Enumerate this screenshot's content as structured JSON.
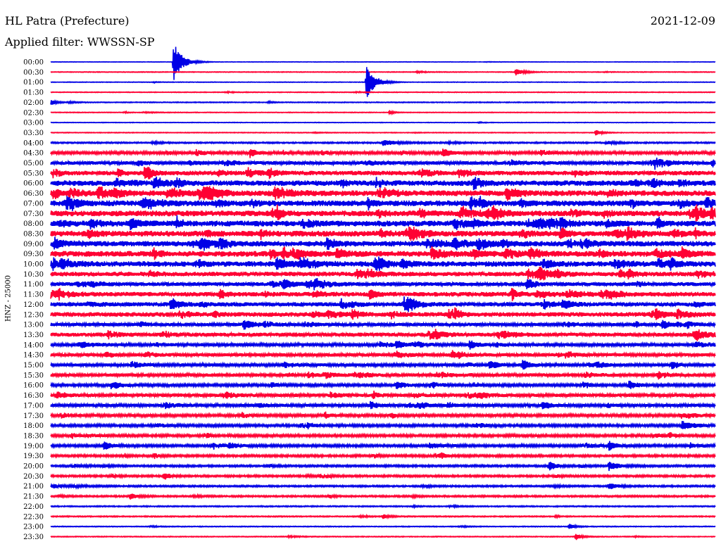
{
  "header": {
    "station": "HL Patra (Prefecture)",
    "date": "2021-12-09",
    "filter": "Applied filter: WWSSN-SP"
  },
  "chart_data": {
    "type": "line",
    "ylabel": "HNZ - 25000",
    "colors": [
      "#0000e6",
      "#ff0033"
    ],
    "grid": false,
    "rows": [
      "00:00",
      "00:30",
      "01:00",
      "01:30",
      "02:00",
      "02:30",
      "03:00",
      "03:30",
      "04:00",
      "04:30",
      "05:00",
      "05:30",
      "06:00",
      "06:30",
      "07:00",
      "07:30",
      "08:00",
      "08:30",
      "09:00",
      "09:30",
      "10:00",
      "10:30",
      "11:00",
      "11:30",
      "12:00",
      "12:30",
      "13:00",
      "13:30",
      "14:00",
      "14:30",
      "15:00",
      "15:30",
      "16:00",
      "16:30",
      "17:00",
      "17:30",
      "18:00",
      "18:30",
      "19:00",
      "19:30",
      "20:00",
      "20:30",
      "21:00",
      "21:30",
      "22:00",
      "22:30",
      "23:00",
      "23:30"
    ],
    "noise": [
      0.3,
      0.5,
      0.4,
      0.5,
      0.6,
      0.5,
      0.4,
      0.5,
      1.0,
      2.0,
      2.5,
      3.2,
      3.8,
      4.0,
      4.0,
      4.0,
      4.0,
      4.0,
      3.8,
      4.0,
      3.8,
      3.2,
      2.8,
      3.2,
      3.0,
      3.2,
      2.4,
      2.8,
      2.2,
      2.4,
      2.2,
      2.4,
      2.0,
      2.4,
      2.2,
      2.0,
      1.8,
      1.8,
      1.8,
      1.6,
      1.4,
      1.4,
      1.2,
      1.2,
      0.8,
      0.8,
      0.6,
      0.6
    ],
    "events": [
      {
        "row": 0,
        "t": 0.185,
        "amp": 28,
        "dur": 0.012
      },
      {
        "row": 1,
        "t": 0.7,
        "amp": 6,
        "dur": 0.01
      },
      {
        "row": 2,
        "t": 0.475,
        "amp": 24,
        "dur": 0.012
      },
      {
        "row": 4,
        "t": 0.0,
        "amp": 4,
        "dur": 0.008
      },
      {
        "row": 5,
        "t": 0.51,
        "amp": 3,
        "dur": 0.006
      },
      {
        "row": 7,
        "t": 0.82,
        "amp": 4,
        "dur": 0.008
      },
      {
        "row": 8,
        "t": 0.5,
        "amp": 4,
        "dur": 0.02
      },
      {
        "row": 9,
        "t": 0.3,
        "amp": 6,
        "dur": 0.008
      },
      {
        "row": 9,
        "t": 0.59,
        "amp": 5,
        "dur": 0.012
      },
      {
        "row": 13,
        "t": 0.23,
        "amp": 6,
        "dur": 0.01
      },
      {
        "row": 16,
        "t": 0.12,
        "amp": 7,
        "dur": 0.012
      },
      {
        "row": 19,
        "t": 0.43,
        "amp": 7,
        "dur": 0.01
      },
      {
        "row": 19,
        "t": 0.95,
        "amp": 7,
        "dur": 0.01
      },
      {
        "row": 20,
        "t": 0.34,
        "amp": 7,
        "dur": 0.014
      },
      {
        "row": 22,
        "t": 0.35,
        "amp": 6,
        "dur": 0.01
      },
      {
        "row": 23,
        "t": 0.48,
        "amp": 6,
        "dur": 0.01
      },
      {
        "row": 24,
        "t": 0.18,
        "amp": 6,
        "dur": 0.01
      },
      {
        "row": 24,
        "t": 0.77,
        "amp": 6,
        "dur": 0.012
      },
      {
        "row": 25,
        "t": 0.91,
        "amp": 6,
        "dur": 0.012
      },
      {
        "row": 26,
        "t": 0.29,
        "amp": 6,
        "dur": 0.014
      },
      {
        "row": 26,
        "t": 0.92,
        "amp": 6,
        "dur": 0.01
      },
      {
        "row": 28,
        "t": 0.52,
        "amp": 6,
        "dur": 0.008
      },
      {
        "row": 28,
        "t": 0.63,
        "amp": 6,
        "dur": 0.01
      },
      {
        "row": 30,
        "t": 0.66,
        "amp": 6,
        "dur": 0.012
      },
      {
        "row": 30,
        "t": 0.71,
        "amp": 6,
        "dur": 0.01
      },
      {
        "row": 32,
        "t": 0.52,
        "amp": 6,
        "dur": 0.01
      },
      {
        "row": 32,
        "t": 0.87,
        "amp": 6,
        "dur": 0.01
      },
      {
        "row": 34,
        "t": 0.74,
        "amp": 6,
        "dur": 0.01
      },
      {
        "row": 36,
        "t": 0.95,
        "amp": 6,
        "dur": 0.016
      },
      {
        "row": 38,
        "t": 0.08,
        "amp": 6,
        "dur": 0.01
      },
      {
        "row": 38,
        "t": 0.84,
        "amp": 6,
        "dur": 0.012
      },
      {
        "row": 40,
        "t": 0.75,
        "amp": 6,
        "dur": 0.01
      },
      {
        "row": 40,
        "t": 0.84,
        "amp": 6,
        "dur": 0.014
      },
      {
        "row": 41,
        "t": 0.17,
        "amp": 5,
        "dur": 0.01
      },
      {
        "row": 42,
        "t": 0.84,
        "amp": 5,
        "dur": 0.012
      },
      {
        "row": 43,
        "t": 0.12,
        "amp": 4,
        "dur": 0.01
      },
      {
        "row": 45,
        "t": 0.5,
        "amp": 3,
        "dur": 0.008
      },
      {
        "row": 46,
        "t": 0.78,
        "amp": 4,
        "dur": 0.008
      },
      {
        "row": 47,
        "t": 0.79,
        "amp": 5,
        "dur": 0.008
      }
    ]
  }
}
